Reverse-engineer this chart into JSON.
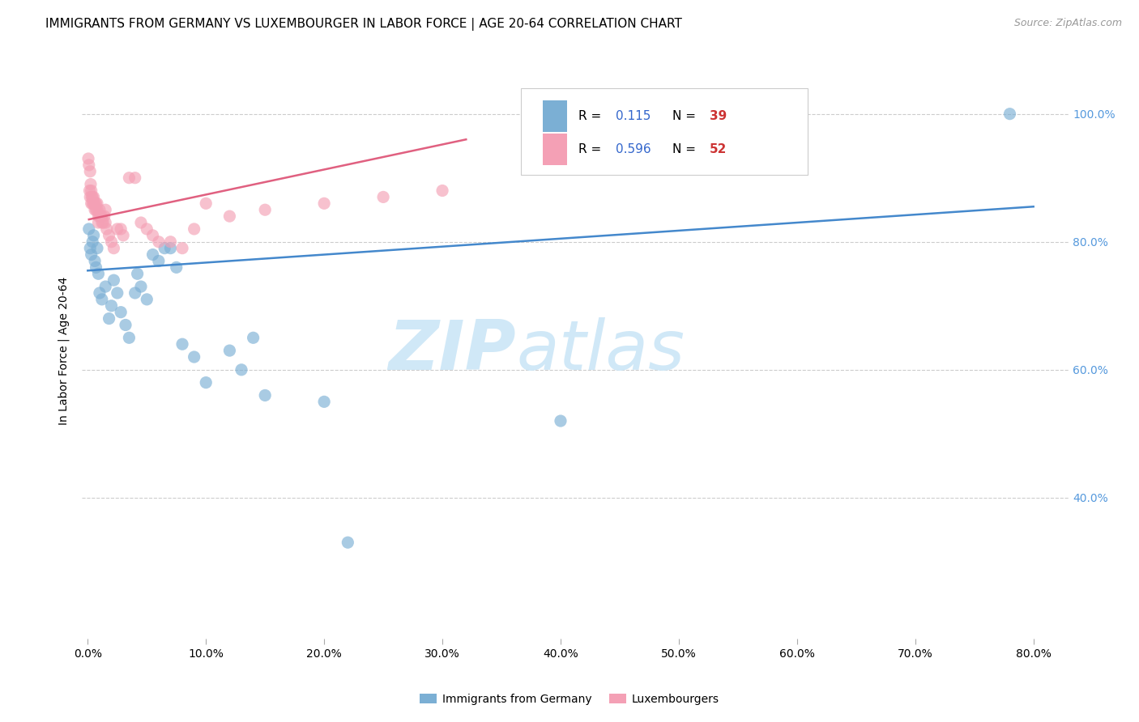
{
  "title": "IMMIGRANTS FROM GERMANY VS LUXEMBOURGER IN LABOR FORCE | AGE 20-64 CORRELATION CHART",
  "source": "Source: ZipAtlas.com",
  "ylabel": "In Labor Force | Age 20-64",
  "x_tick_labels": [
    "0.0%",
    "10.0%",
    "20.0%",
    "30.0%",
    "40.0%",
    "50.0%",
    "60.0%",
    "70.0%",
    "80.0%"
  ],
  "x_ticks": [
    0.0,
    0.1,
    0.2,
    0.3,
    0.4,
    0.5,
    0.6,
    0.7,
    0.8
  ],
  "y_tick_labels": [
    "100.0%",
    "80.0%",
    "60.0%",
    "40.0%"
  ],
  "y_ticks": [
    1.0,
    0.8,
    0.6,
    0.4
  ],
  "xlim": [
    -0.005,
    0.83
  ],
  "ylim": [
    0.18,
    1.08
  ],
  "blue_scatter_x": [
    0.001,
    0.002,
    0.003,
    0.004,
    0.005,
    0.006,
    0.007,
    0.008,
    0.009,
    0.01,
    0.012,
    0.015,
    0.018,
    0.02,
    0.022,
    0.025,
    0.028,
    0.032,
    0.035,
    0.04,
    0.042,
    0.045,
    0.05,
    0.055,
    0.06,
    0.065,
    0.07,
    0.075,
    0.08,
    0.09,
    0.1,
    0.12,
    0.13,
    0.14,
    0.15,
    0.2,
    0.22,
    0.4,
    0.78
  ],
  "blue_scatter_y": [
    0.82,
    0.79,
    0.78,
    0.8,
    0.81,
    0.77,
    0.76,
    0.79,
    0.75,
    0.72,
    0.71,
    0.73,
    0.68,
    0.7,
    0.74,
    0.72,
    0.69,
    0.67,
    0.65,
    0.72,
    0.75,
    0.73,
    0.71,
    0.78,
    0.77,
    0.79,
    0.79,
    0.76,
    0.64,
    0.62,
    0.58,
    0.63,
    0.6,
    0.65,
    0.56,
    0.55,
    0.33,
    0.52,
    1.0
  ],
  "pink_scatter_x": [
    0.0005,
    0.001,
    0.0015,
    0.002,
    0.002,
    0.0025,
    0.003,
    0.003,
    0.0035,
    0.004,
    0.004,
    0.005,
    0.005,
    0.006,
    0.006,
    0.007,
    0.007,
    0.008,
    0.008,
    0.009,
    0.009,
    0.01,
    0.01,
    0.011,
    0.012,
    0.012,
    0.013,
    0.014,
    0.015,
    0.015,
    0.016,
    0.018,
    0.02,
    0.022,
    0.025,
    0.028,
    0.03,
    0.035,
    0.04,
    0.045,
    0.05,
    0.055,
    0.06,
    0.07,
    0.08,
    0.09,
    0.1,
    0.12,
    0.15,
    0.2,
    0.25,
    0.3
  ],
  "pink_scatter_y": [
    0.93,
    0.92,
    0.88,
    0.91,
    0.87,
    0.89,
    0.88,
    0.86,
    0.87,
    0.87,
    0.86,
    0.87,
    0.86,
    0.86,
    0.85,
    0.86,
    0.85,
    0.86,
    0.85,
    0.84,
    0.83,
    0.85,
    0.84,
    0.84,
    0.84,
    0.83,
    0.83,
    0.84,
    0.85,
    0.83,
    0.82,
    0.81,
    0.8,
    0.79,
    0.82,
    0.82,
    0.81,
    0.9,
    0.9,
    0.83,
    0.82,
    0.81,
    0.8,
    0.8,
    0.79,
    0.82,
    0.86,
    0.84,
    0.85,
    0.86,
    0.87,
    0.88
  ],
  "blue_line_x": [
    0.0,
    0.8
  ],
  "blue_line_y": [
    0.755,
    0.855
  ],
  "pink_line_x": [
    0.001,
    0.32
  ],
  "pink_line_y": [
    0.835,
    0.96
  ],
  "scatter_size": 120,
  "blue_color": "#7bafd4",
  "pink_color": "#f4a0b5",
  "blue_line_color": "#4488cc",
  "pink_line_color": "#e06080",
  "grid_color": "#cccccc",
  "watermark_zip": "ZIP",
  "watermark_atlas": "atlas",
  "watermark_color": "#d0e8f7",
  "background_color": "#ffffff",
  "title_fontsize": 11,
  "axis_label_fontsize": 10,
  "tick_fontsize": 10,
  "right_tick_color": "#5599dd",
  "legend_R_color": "#3366cc",
  "legend_N_color": "#cc3333",
  "bottom_legend_blue_label": "Immigrants from Germany",
  "bottom_legend_pink_label": "Luxembourgers"
}
